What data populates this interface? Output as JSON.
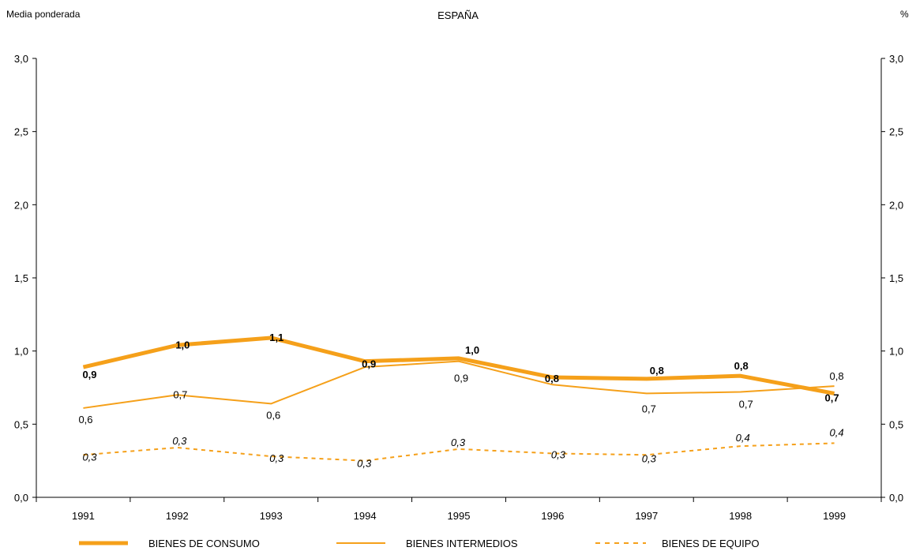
{
  "header": {
    "left": "Media ponderada",
    "title": "ESPAÑA",
    "right": "%"
  },
  "chart_data": {
    "type": "line",
    "title": "ESPAÑA",
    "ylabel": "Media ponderada",
    "y_unit": "%",
    "ylim": [
      0,
      3.0
    ],
    "yticks": [
      "0,0",
      "0,5",
      "1,0",
      "1,5",
      "2,0",
      "2,5",
      "3,0"
    ],
    "ytick_values": [
      0,
      0.5,
      1.0,
      1.5,
      2.0,
      2.5,
      3.0
    ],
    "categories": [
      "1991",
      "1992",
      "1993",
      "1994",
      "1995",
      "1996",
      "1997",
      "1998",
      "1999"
    ],
    "grid": false,
    "legend_position": "bottom",
    "series": [
      {
        "name": "BIENES DE CONSUMO",
        "style": "thick",
        "color": "#f5a01a",
        "values": [
          0.89,
          1.04,
          1.09,
          0.93,
          0.95,
          0.82,
          0.81,
          0.83,
          0.71
        ],
        "labels": [
          "0,9",
          "1,0",
          "1,1",
          "0,9",
          "1,0",
          "0,8",
          "0,8",
          "0,8",
          "0,7"
        ]
      },
      {
        "name": "BIENES INTERMEDIOS",
        "style": "thin",
        "color": "#f5a01a",
        "values": [
          0.61,
          0.7,
          0.64,
          0.89,
          0.93,
          0.77,
          0.71,
          0.72,
          0.76
        ],
        "labels": [
          "0,6",
          "0,7",
          "0,6",
          "",
          "0,9",
          "",
          "0,7",
          "0,7",
          "0,8"
        ]
      },
      {
        "name": "BIENES DE EQUIPO",
        "style": "dashed",
        "color": "#f5a01a",
        "values": [
          0.29,
          0.34,
          0.28,
          0.25,
          0.33,
          0.3,
          0.29,
          0.35,
          0.37
        ],
        "labels": [
          "0,3",
          "0,3",
          "0,3",
          "0,3",
          "0,3",
          "0,3",
          "0,3",
          "0,4",
          "0,4"
        ]
      }
    ]
  }
}
